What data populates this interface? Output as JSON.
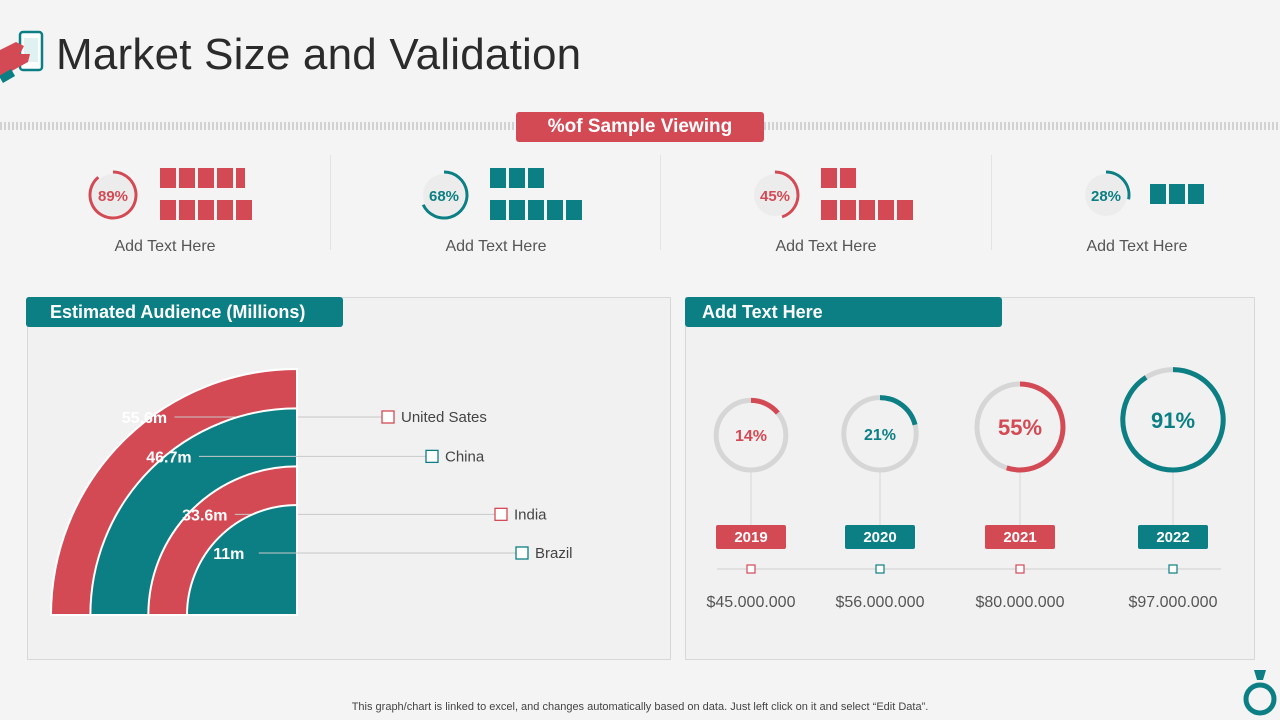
{
  "page": {
    "title": "Market Size and Validation",
    "banner": "%of Sample Viewing"
  },
  "colors": {
    "red": "#d34a55",
    "teal": "#0c7f84",
    "gray_ring": "#d6d6d6"
  },
  "icons": {
    "header": "hand-holding-phone-icon",
    "corner": "money-bag-icon"
  },
  "stats": [
    {
      "percent": "89%",
      "value": 0.89,
      "label": "Add Text Here",
      "color": "red",
      "top_blocks": 5,
      "bottom_blocks": 5,
      "top_last_narrow": true
    },
    {
      "percent": "68%",
      "value": 0.68,
      "label": "Add Text Here",
      "color": "teal",
      "top_blocks": 3,
      "bottom_blocks": 5,
      "top_last_narrow": false
    },
    {
      "percent": "45%",
      "value": 0.45,
      "label": "Add Text Here",
      "color": "red",
      "top_blocks": 2,
      "bottom_blocks": 5,
      "top_last_narrow": false
    },
    {
      "percent": "28%",
      "value": 0.28,
      "label": "Add Text Here",
      "color": "teal",
      "top_blocks": 3,
      "bottom_blocks": 0,
      "top_last_narrow": false
    }
  ],
  "audience_panel": {
    "heading": "Estimated Audience (Millions)"
  },
  "years_panel": {
    "heading": "Add Text Here"
  },
  "footnote": "This graph/chart is linked to excel,  and changes automatically based on data. Just left click on it and select “Edit Data”.",
  "chart_data": [
    {
      "type": "nested-semicircle",
      "title": "Estimated Audience (Millions)",
      "categories": [
        "United Sates",
        "China",
        "India",
        "Brazil"
      ],
      "values": [
        55.6,
        46.7,
        33.6,
        11
      ],
      "value_labels": [
        "55.6m",
        "46.7m",
        "33.6m",
        "11m"
      ],
      "colors": [
        "red",
        "teal",
        "red",
        "teal"
      ]
    },
    {
      "type": "progress-rings",
      "categories": [
        "2019",
        "2020",
        "2021",
        "2022"
      ],
      "percent_labels": [
        "14%",
        "21%",
        "55%",
        "91%"
      ],
      "values": [
        0.14,
        0.21,
        0.55,
        0.91
      ],
      "amounts": [
        "$45.000.000",
        "$56.000.000",
        "$80.000.000",
        "$97.000.000"
      ],
      "colors": [
        "red",
        "teal",
        "red",
        "teal"
      ]
    }
  ]
}
